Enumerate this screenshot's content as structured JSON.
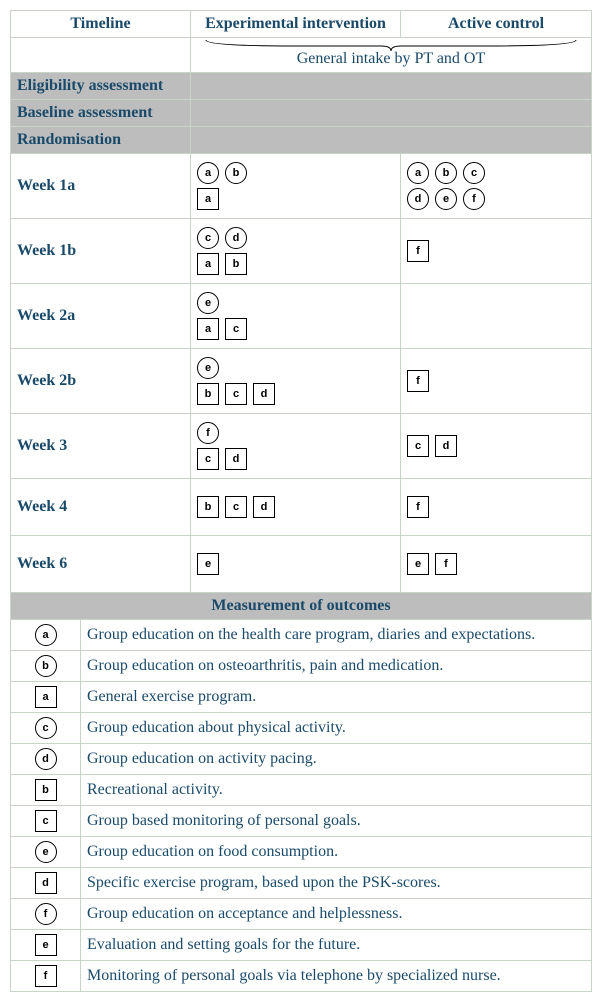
{
  "colors": {
    "text": "#1a4a6a",
    "border": "#c8d4c8",
    "gray_bg": "#bdbdbd",
    "icon_border": "#000000",
    "background": "#ffffff"
  },
  "layout": {
    "total_width": 580,
    "col_timeline_width": 180,
    "col_exp_width": 210,
    "col_ctrl_width": 190,
    "icon_size": 20,
    "icon_font_size": 11
  },
  "headers": {
    "timeline": "Timeline",
    "experimental": "Experimental intervention",
    "control": "Active control"
  },
  "intake_label": "General intake by PT and OT",
  "phase_rows": [
    {
      "label": "Eligibility assessment"
    },
    {
      "label": "Baseline assessment"
    },
    {
      "label": "Randomisation"
    }
  ],
  "week_rows": [
    {
      "label": "Week 1a",
      "exp": [
        [
          {
            "t": "a",
            "s": "circle"
          },
          {
            "t": "b",
            "s": "circle"
          }
        ],
        [
          {
            "t": "a",
            "s": "square"
          }
        ]
      ],
      "ctrl": [
        [
          {
            "t": "a",
            "s": "circle"
          },
          {
            "t": "b",
            "s": "circle"
          },
          {
            "t": "c",
            "s": "circle"
          }
        ],
        [
          {
            "t": "d",
            "s": "circle"
          },
          {
            "t": "e",
            "s": "circle"
          },
          {
            "t": "f",
            "s": "circle"
          }
        ]
      ]
    },
    {
      "label": "Week 1b",
      "exp": [
        [
          {
            "t": "c",
            "s": "circle"
          },
          {
            "t": "d",
            "s": "circle"
          }
        ],
        [
          {
            "t": "a",
            "s": "square"
          },
          {
            "t": "b",
            "s": "square"
          }
        ]
      ],
      "ctrl": [
        [
          {
            "t": "f",
            "s": "square"
          }
        ]
      ]
    },
    {
      "label": "Week 2a",
      "exp": [
        [
          {
            "t": "e",
            "s": "circle"
          }
        ],
        [
          {
            "t": "a",
            "s": "square"
          },
          {
            "t": "c",
            "s": "square"
          }
        ]
      ],
      "ctrl": []
    },
    {
      "label": "Week 2b",
      "exp": [
        [
          {
            "t": "e",
            "s": "circle"
          }
        ],
        [
          {
            "t": "b",
            "s": "square"
          },
          {
            "t": "c",
            "s": "square"
          },
          {
            "t": "d",
            "s": "square"
          }
        ]
      ],
      "ctrl": [
        [
          {
            "t": "f",
            "s": "square"
          }
        ]
      ]
    },
    {
      "label": "Week 3",
      "exp": [
        [
          {
            "t": "f",
            "s": "circle"
          }
        ],
        [
          {
            "t": "c",
            "s": "square"
          },
          {
            "t": "d",
            "s": "square"
          }
        ]
      ],
      "ctrl": [
        [
          {
            "t": "c",
            "s": "square"
          },
          {
            "t": "d",
            "s": "square"
          }
        ]
      ]
    },
    {
      "label": "Week 4",
      "exp": [
        [
          {
            "t": "b",
            "s": "square"
          },
          {
            "t": "c",
            "s": "square"
          },
          {
            "t": "d",
            "s": "square"
          }
        ]
      ],
      "ctrl": [
        [
          {
            "t": "f",
            "s": "square"
          }
        ]
      ]
    },
    {
      "label": "Week 6",
      "exp": [
        [
          {
            "t": "e",
            "s": "square"
          }
        ]
      ],
      "ctrl": [
        [
          {
            "t": "e",
            "s": "square"
          },
          {
            "t": "f",
            "s": "square"
          }
        ]
      ]
    }
  ],
  "outcomes_header": "Measurement of outcomes",
  "legend": [
    {
      "key": {
        "t": "a",
        "s": "circle"
      },
      "desc": "Group education on the health care program, diaries and expectations."
    },
    {
      "key": {
        "t": "b",
        "s": "circle"
      },
      "desc": "Group education on osteoarthritis, pain and medication."
    },
    {
      "key": {
        "t": "a",
        "s": "square"
      },
      "desc": "General exercise program."
    },
    {
      "key": {
        "t": "c",
        "s": "circle"
      },
      "desc": "Group education about physical activity."
    },
    {
      "key": {
        "t": "d",
        "s": "circle"
      },
      "desc": "Group education on activity pacing."
    },
    {
      "key": {
        "t": "b",
        "s": "square"
      },
      "desc": "Recreational activity."
    },
    {
      "key": {
        "t": "c",
        "s": "square"
      },
      "desc": "Group based monitoring of personal goals."
    },
    {
      "key": {
        "t": "e",
        "s": "circle"
      },
      "desc": "Group education on food consumption."
    },
    {
      "key": {
        "t": "d",
        "s": "square"
      },
      "desc": "Specific exercise program, based upon the PSK-scores."
    },
    {
      "key": {
        "t": "f",
        "s": "circle"
      },
      "desc": "Group education on acceptance and helplessness."
    },
    {
      "key": {
        "t": "e",
        "s": "square"
      },
      "desc": "Evaluation and setting goals for the future."
    },
    {
      "key": {
        "t": "f",
        "s": "square"
      },
      "desc": "Monitoring of personal goals via telephone by specialized nurse."
    }
  ]
}
